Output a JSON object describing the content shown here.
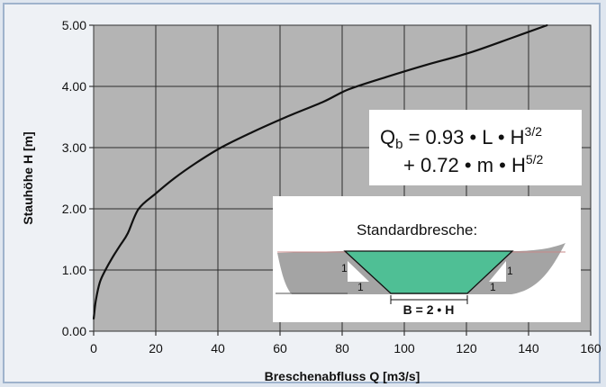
{
  "chart_data": {
    "type": "line",
    "xlabel": "Breschenabfluss Q [m3/s]",
    "ylabel": "Stauhöhe H [m]",
    "xlim": [
      0,
      160
    ],
    "ylim": [
      0,
      5
    ],
    "xticks": [
      "0",
      "20",
      "40",
      "60",
      "80",
      "100",
      "120",
      "140",
      "160"
    ],
    "yticks": [
      "0.00",
      "1.00",
      "2.00",
      "3.00",
      "4.00",
      "5.00"
    ],
    "grid": true,
    "series": [
      {
        "x": [
          0,
          0.7,
          2,
          3.8,
          6,
          8.5,
          11,
          14.5,
          20,
          26,
          33,
          41,
          51,
          62,
          74,
          82,
          94,
          107,
          121,
          135,
          146
        ],
        "y": [
          0.2,
          0.5,
          0.8,
          1.0,
          1.2,
          1.4,
          1.6,
          2.0,
          2.25,
          2.5,
          2.75,
          3.0,
          3.25,
          3.5,
          3.75,
          3.95,
          4.15,
          4.35,
          4.55,
          4.8,
          5.0
        ]
      }
    ],
    "annotation": {
      "formula_q": "Q",
      "formula_sub": "b",
      "formula_line1_rest": " = 0.93 • L • H",
      "formula_exp1": "3/2",
      "formula_line2": "+ 0.72 • m • H",
      "formula_exp2": "5/2"
    },
    "inset": {
      "title": "Standardbresche:",
      "slope_label": "1",
      "base_label": "B = 2 • H",
      "fill_color": "#4fbf95"
    }
  }
}
